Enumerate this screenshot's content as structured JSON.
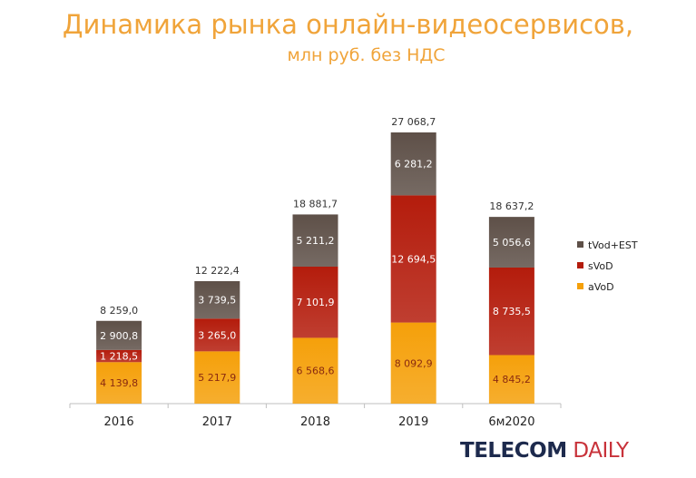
{
  "chart_data": {
    "type": "bar",
    "stacked": true,
    "title": "Динамика рынка онлайн-видеосервисов,",
    "subtitle": "млн руб. без НДС",
    "categories": [
      "2016",
      "2017",
      "2018",
      "2019",
      "6м2020"
    ],
    "series": [
      {
        "name": "aVoD",
        "color": "#f5a00a",
        "label_color": "#8a2a10",
        "values": [
          4139.8,
          5217.9,
          6568.6,
          8092.9,
          4845.2
        ],
        "labels": [
          "4 139,8",
          "5 217,9",
          "6 568,6",
          "8 092,9",
          "4 845,2"
        ]
      },
      {
        "name": "sVoD",
        "color": "#b41c0c",
        "label_color": "#ffffff",
        "values": [
          1218.5,
          3265.0,
          7101.9,
          12694.5,
          8735.5
        ],
        "labels": [
          "1 218,5",
          "3 265,0",
          "7 101,9",
          "12 694,5",
          "8 735,5"
        ]
      },
      {
        "name": "tVod+EST",
        "color": "#5e5048",
        "label_color": "#ffffff",
        "values": [
          2900.8,
          3739.5,
          5211.2,
          6281.2,
          5056.6
        ],
        "labels": [
          "2 900,8",
          "3 739,5",
          "5 211,2",
          "6 281,2",
          "5 056,6"
        ]
      }
    ],
    "totals": [
      8259.0,
      12222.4,
      18881.7,
      27068.7,
      18637.2
    ],
    "total_labels": [
      "8 259,0",
      "12 222,4",
      "18 881,7",
      "27 068,7",
      "18 637,2"
    ],
    "legend_order": [
      "tVod+EST",
      "sVoD",
      "aVoD"
    ],
    "legend_position": "right",
    "ylim": [
      0,
      27068.7
    ],
    "grid": false
  },
  "logo": {
    "part1": "TELECOM",
    "part2": "DAILY"
  }
}
